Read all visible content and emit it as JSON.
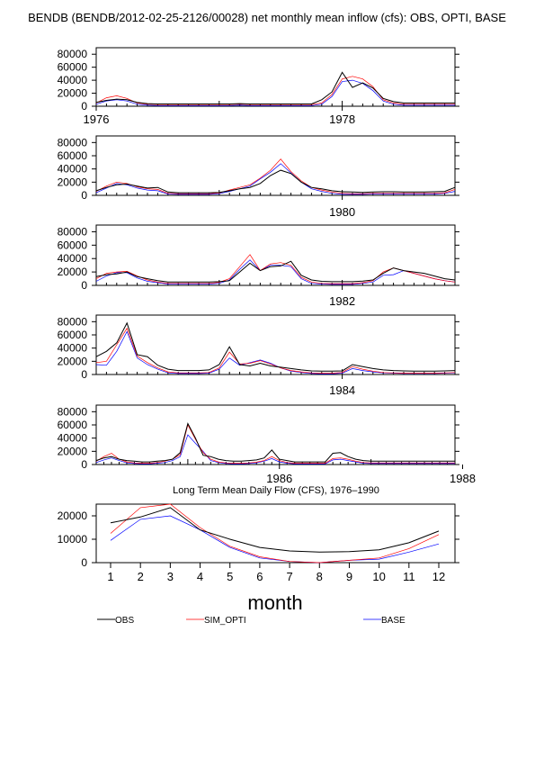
{
  "title": "BENDB (BENDB/2012-02-25-2126/00028) net monthly mean inflow (cfs): OBS, OPTI, BASE",
  "colors": {
    "obs": "#000000",
    "opti": "#ff0000",
    "base": "#0000ff"
  },
  "chart_data": [
    {
      "type": "line",
      "name": "panel-1976-1978",
      "year_labels": [
        {
          "month_index": 0,
          "label": "1976"
        },
        {
          "month_index": 24,
          "label": "1978"
        }
      ],
      "ylim": [
        0,
        90000
      ],
      "yticks": [
        "0",
        "20000",
        "40000",
        "60000",
        "80000"
      ],
      "series": [
        {
          "key": "obs",
          "values": [
            6000,
            9000,
            11000,
            10000,
            6000,
            4000,
            3500,
            3500,
            3500,
            3500,
            3500,
            3500,
            3500,
            3500,
            4000,
            3500,
            3500,
            3500,
            3500,
            3500,
            3500,
            3500,
            10000,
            22000,
            52000,
            29000,
            36000,
            28000,
            12000,
            7000,
            5000,
            5000,
            5000,
            5000,
            5000,
            5000
          ]
        },
        {
          "key": "opti",
          "values": [
            5000,
            13000,
            16000,
            12000,
            5000,
            3000,
            2500,
            2500,
            2500,
            2500,
            2500,
            2500,
            2500,
            2500,
            3000,
            2500,
            2500,
            2500,
            2500,
            2500,
            2500,
            2500,
            5000,
            18000,
            42000,
            46000,
            42000,
            30000,
            10000,
            5000,
            3000,
            3000,
            3000,
            3000,
            3000,
            3000
          ]
        },
        {
          "key": "base",
          "values": [
            3000,
            8000,
            10000,
            8000,
            3000,
            1500,
            1000,
            1000,
            1000,
            1000,
            1000,
            1000,
            1000,
            1000,
            1500,
            1000,
            1000,
            1000,
            1000,
            1000,
            1000,
            1000,
            3000,
            15000,
            38000,
            40000,
            35000,
            24000,
            8000,
            3000,
            1500,
            1500,
            1500,
            1500,
            1500,
            1500
          ]
        }
      ]
    },
    {
      "type": "line",
      "name": "panel-1978-1980",
      "year_labels": [
        {
          "month_index": 24,
          "label": "1980"
        }
      ],
      "ylim": [
        0,
        90000
      ],
      "yticks": [
        "0",
        "20000",
        "40000",
        "60000",
        "80000"
      ],
      "series": [
        {
          "key": "obs",
          "values": [
            7000,
            12000,
            16000,
            17000,
            14000,
            11000,
            12000,
            5000,
            4000,
            4000,
            4000,
            4000,
            4500,
            7000,
            10000,
            12000,
            18000,
            30000,
            38000,
            33000,
            20000,
            12000,
            10000,
            7000,
            5500,
            5000,
            4500,
            5000,
            5500,
            5500,
            5000,
            5000,
            5000,
            5500,
            6000,
            12000
          ]
        },
        {
          "key": "opti",
          "values": [
            6000,
            14000,
            20000,
            18000,
            13000,
            10000,
            9000,
            3000,
            2500,
            2500,
            2500,
            2500,
            3500,
            8000,
            12000,
            16000,
            26000,
            38000,
            55000,
            36000,
            22000,
            12000,
            8000,
            5000,
            3000,
            2500,
            2500,
            3000,
            3000,
            3000,
            3000,
            3000,
            3000,
            3000,
            4000,
            9000
          ]
        },
        {
          "key": "base",
          "values": [
            4000,
            11000,
            18000,
            16000,
            11000,
            8000,
            7000,
            2000,
            1500,
            1500,
            1500,
            1500,
            2500,
            6000,
            10000,
            14000,
            25000,
            35000,
            48000,
            34000,
            20000,
            10000,
            6000,
            3000,
            1500,
            1500,
            1500,
            2000,
            2000,
            2000,
            2000,
            2000,
            2000,
            2000,
            3000,
            6000
          ]
        }
      ]
    },
    {
      "type": "line",
      "name": "panel-1980-1982",
      "year_labels": [
        {
          "month_index": 24,
          "label": "1982"
        }
      ],
      "ylim": [
        0,
        90000
      ],
      "yticks": [
        "0",
        "20000",
        "40000",
        "60000",
        "80000"
      ],
      "series": [
        {
          "key": "obs",
          "values": [
            13000,
            16000,
            17000,
            20000,
            13000,
            10000,
            7000,
            5000,
            5000,
            5000,
            5000,
            5000,
            5500,
            7000,
            20000,
            33000,
            22000,
            28000,
            29000,
            36000,
            15000,
            8000,
            6000,
            5500,
            5500,
            5500,
            6500,
            8000,
            18000,
            26000,
            22000,
            20000,
            18000,
            14000,
            10000,
            8000
          ]
        },
        {
          "key": "opti",
          "values": [
            10000,
            18000,
            20000,
            21000,
            14000,
            8000,
            5000,
            3000,
            3000,
            3000,
            3000,
            3000,
            4500,
            10000,
            28000,
            46000,
            22000,
            32000,
            34000,
            30000,
            12000,
            5000,
            3000,
            2500,
            2500,
            2500,
            4000,
            7000,
            20000,
            26000,
            22000,
            18000,
            14000,
            10000,
            7000,
            5000
          ]
        },
        {
          "key": "base",
          "values": [
            6000,
            14000,
            19000,
            19000,
            11000,
            6000,
            4000,
            2000,
            2000,
            2000,
            2000,
            2000,
            3000,
            8000,
            24000,
            38000,
            22000,
            30000,
            30000,
            28000,
            10000,
            3000,
            2000,
            1500,
            1500,
            1500,
            3000,
            5000,
            15000,
            16000,
            22000,
            18000,
            14000,
            10000,
            7000,
            5000
          ]
        }
      ]
    },
    {
      "type": "line",
      "name": "panel-1982-1984",
      "year_labels": [
        {
          "month_index": 24,
          "label": "1984"
        }
      ],
      "ylim": [
        0,
        90000
      ],
      "yticks": [
        "0",
        "20000",
        "40000",
        "60000",
        "80000"
      ],
      "series": [
        {
          "key": "obs",
          "values": [
            27000,
            35000,
            48000,
            78000,
            30000,
            27000,
            14000,
            8000,
            6000,
            6000,
            6000,
            7000,
            15000,
            42000,
            15000,
            13000,
            17000,
            13000,
            11000,
            9000,
            7000,
            5500,
            5000,
            5000,
            5500,
            15000,
            12000,
            9000,
            7000,
            6000,
            5500,
            5000,
            5000,
            5000,
            5500,
            6000
          ]
        },
        {
          "key": "opti",
          "values": [
            18000,
            20000,
            45000,
            70000,
            28000,
            18000,
            10000,
            4000,
            2500,
            2500,
            2500,
            3000,
            10000,
            34000,
            16000,
            17000,
            21000,
            16000,
            10000,
            6000,
            4000,
            2500,
            2000,
            2000,
            3000,
            12000,
            8000,
            5000,
            3000,
            2500,
            2000,
            2000,
            2000,
            2000,
            2500,
            3000
          ]
        },
        {
          "key": "base",
          "values": [
            15000,
            14000,
            35000,
            65000,
            25000,
            15000,
            8000,
            2500,
            1500,
            1500,
            1500,
            2000,
            8000,
            25000,
            14000,
            18000,
            22000,
            17000,
            10000,
            5000,
            3000,
            1500,
            1000,
            1000,
            2000,
            9000,
            6000,
            4000,
            2500,
            2000,
            1500,
            1500,
            1500,
            1500,
            2000,
            2500
          ]
        }
      ]
    },
    {
      "type": "line",
      "name": "panel-1984-1988",
      "year_labels": [
        {
          "month_index": 24,
          "label": "1986"
        },
        {
          "month_index": 48,
          "label": "1988"
        }
      ],
      "ylim": [
        0,
        90000
      ],
      "yticks": [
        "0",
        "20000",
        "40000",
        "60000",
        "80000"
      ],
      "series": [
        {
          "key": "obs",
          "values": [
            6000,
            10000,
            12000,
            8000,
            6000,
            5000,
            4000,
            4000,
            5000,
            6000,
            8000,
            18000,
            62000,
            40000,
            14000,
            12000,
            8000,
            6000,
            5000,
            5000,
            6000,
            7000,
            10000,
            22000,
            8000,
            6000,
            4000,
            4000,
            4000,
            4000,
            4000,
            17000,
            18000,
            12000,
            8000,
            6000,
            5000,
            5000,
            5000,
            5000,
            5000,
            5000,
            5000,
            5000,
            5000,
            5000,
            5000,
            5000
          ]
        },
        {
          "key": "opti",
          "values": [
            5000,
            12000,
            17000,
            8000,
            4000,
            2500,
            2000,
            2000,
            3000,
            5000,
            8000,
            15000,
            60000,
            38000,
            18000,
            8000,
            4000,
            2500,
            2000,
            2000,
            2500,
            3500,
            6000,
            12000,
            6000,
            3000,
            2000,
            2000,
            2000,
            2000,
            2000,
            9000,
            10000,
            8000,
            5000,
            3000,
            2500,
            2500,
            2500,
            2500,
            2500,
            2500,
            2500,
            2500,
            2500,
            2500,
            2500,
            2500
          ]
        },
        {
          "key": "base",
          "values": [
            3000,
            7000,
            10000,
            6000,
            2500,
            1500,
            1000,
            1000,
            2000,
            3000,
            6000,
            12000,
            45000,
            32000,
            20000,
            6000,
            3000,
            1500,
            1000,
            1000,
            1500,
            2500,
            5000,
            9000,
            4000,
            2000,
            1000,
            1000,
            1000,
            1000,
            1000,
            7000,
            8000,
            6000,
            4000,
            2000,
            1500,
            1500,
            1500,
            1500,
            1500,
            1500,
            1500,
            1500,
            1500,
            1500,
            1500,
            1500
          ]
        }
      ]
    },
    {
      "type": "line",
      "name": "long-term-mean",
      "title": "Long Term Mean Daily Flow (CFS), 1976–1990",
      "xlabel": "month",
      "ylabel": "",
      "categories": [
        "1",
        "2",
        "3",
        "4",
        "5",
        "6",
        "7",
        "8",
        "9",
        "10",
        "11",
        "12"
      ],
      "ylim": [
        0,
        25000
      ],
      "yticks": [
        "0",
        "10000",
        "20000"
      ],
      "series": [
        {
          "key": "obs",
          "values": [
            17000,
            19500,
            23500,
            14000,
            10000,
            6500,
            5000,
            4500,
            4700,
            5500,
            8500,
            13500
          ]
        },
        {
          "key": "opti",
          "values": [
            12500,
            23500,
            25000,
            15000,
            7000,
            2500,
            500,
            0,
            1000,
            2000,
            6000,
            12000
          ]
        },
        {
          "key": "base",
          "values": [
            9500,
            18500,
            20000,
            14000,
            6500,
            2000,
            500,
            0,
            1000,
            1500,
            4500,
            8000
          ]
        }
      ]
    }
  ],
  "legend": [
    {
      "key": "obs",
      "label": "OBS"
    },
    {
      "key": "opti",
      "label": "SIM_OPTI"
    },
    {
      "key": "base",
      "label": "BASE"
    }
  ]
}
